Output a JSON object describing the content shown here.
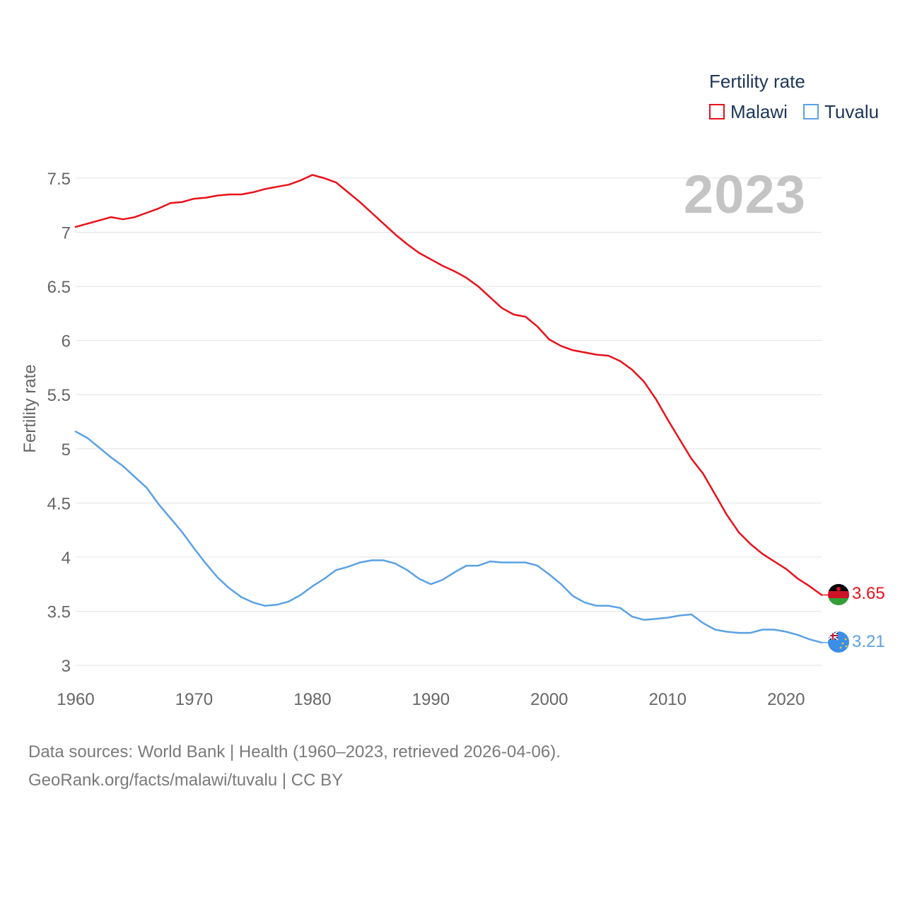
{
  "chart_data": {
    "type": "line",
    "title": "Fertility rate",
    "ylabel": "Fertility rate",
    "xlabel": "",
    "ylim": [
      3,
      7.5
    ],
    "xlim": [
      1960,
      2023
    ],
    "yticks": [
      "7.5",
      "7",
      "6.5",
      "6",
      "5.5",
      "5",
      "4.5",
      "4",
      "3.5",
      "3"
    ],
    "ytick_values": [
      7.5,
      7,
      6.5,
      6,
      5.5,
      5,
      4.5,
      4,
      3.5,
      3
    ],
    "xticks": [
      "1960",
      "1970",
      "1980",
      "1990",
      "2000",
      "2010",
      "2020"
    ],
    "xtick_values": [
      1960,
      1970,
      1980,
      1990,
      2000,
      2010,
      2020
    ],
    "grid": true,
    "legend_position": "top-right",
    "x": [
      1960,
      1961,
      1962,
      1963,
      1964,
      1965,
      1966,
      1967,
      1968,
      1969,
      1970,
      1971,
      1972,
      1973,
      1974,
      1975,
      1976,
      1977,
      1978,
      1979,
      1980,
      1981,
      1982,
      1983,
      1984,
      1985,
      1986,
      1987,
      1988,
      1989,
      1990,
      1991,
      1992,
      1993,
      1994,
      1995,
      1996,
      1997,
      1998,
      1999,
      2000,
      2001,
      2002,
      2003,
      2004,
      2005,
      2006,
      2007,
      2008,
      2009,
      2010,
      2011,
      2012,
      2013,
      2014,
      2015,
      2016,
      2017,
      2018,
      2019,
      2020,
      2021,
      2022,
      2023
    ],
    "series": [
      {
        "name": "Malawi",
        "color": "#e8111a",
        "end_label": "3.65",
        "values": [
          7.05,
          7.08,
          7.11,
          7.14,
          7.12,
          7.14,
          7.18,
          7.22,
          7.27,
          7.28,
          7.31,
          7.32,
          7.34,
          7.35,
          7.35,
          7.37,
          7.4,
          7.42,
          7.44,
          7.48,
          7.53,
          7.5,
          7.46,
          7.37,
          7.28,
          7.18,
          7.08,
          6.98,
          6.89,
          6.81,
          6.75,
          6.69,
          6.64,
          6.58,
          6.5,
          6.4,
          6.3,
          6.24,
          6.22,
          6.13,
          6.01,
          5.95,
          5.91,
          5.89,
          5.87,
          5.86,
          5.81,
          5.73,
          5.62,
          5.46,
          5.27,
          5.09,
          4.91,
          4.77,
          4.58,
          4.39,
          4.23,
          4.12,
          4.03,
          3.96,
          3.89,
          3.8,
          3.73,
          3.65
        ]
      },
      {
        "name": "Tuvalu",
        "color": "#5aa1e6",
        "end_label": "3.21",
        "values": [
          5.16,
          5.1,
          5.01,
          4.92,
          4.84,
          4.74,
          4.64,
          4.49,
          4.36,
          4.23,
          4.08,
          3.94,
          3.81,
          3.71,
          3.63,
          3.58,
          3.55,
          3.56,
          3.59,
          3.65,
          3.73,
          3.8,
          3.88,
          3.91,
          3.95,
          3.97,
          3.97,
          3.94,
          3.88,
          3.8,
          3.75,
          3.79,
          3.86,
          3.92,
          3.92,
          3.96,
          3.95,
          3.95,
          3.95,
          3.92,
          3.84,
          3.75,
          3.64,
          3.58,
          3.55,
          3.55,
          3.53,
          3.45,
          3.42,
          3.43,
          3.44,
          3.46,
          3.47,
          3.39,
          3.33,
          3.31,
          3.3,
          3.3,
          3.33,
          3.33,
          3.31,
          3.28,
          3.24,
          3.21
        ]
      }
    ]
  },
  "legend": {
    "title": "Fertility rate",
    "items": [
      "Malawi",
      "Tuvalu"
    ]
  },
  "year_label": "2023",
  "footer": {
    "line1": "Data sources: World Bank | Health (1960–2023, retrieved 2026-04-06).",
    "line2": "GeoRank.org/facts/malawi/tuvalu | CC BY"
  },
  "flags": {
    "malawi": "malawi-flag-icon",
    "tuvalu": "tuvalu-flag-icon"
  }
}
